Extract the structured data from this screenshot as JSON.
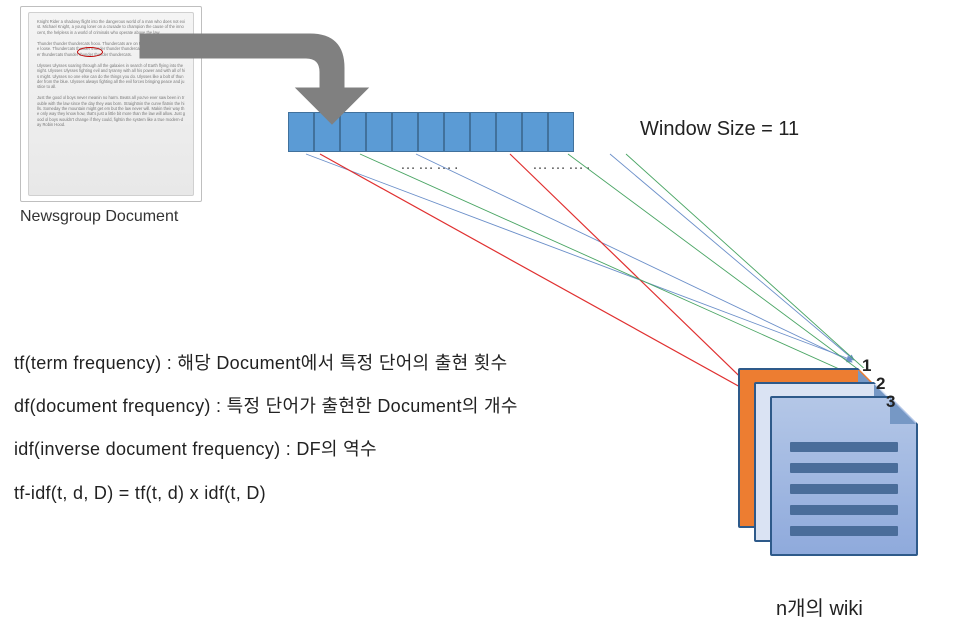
{
  "document": {
    "caption": "Newsgroup Document",
    "greeked_paragraphs": [
      "Knight Rider a shadowy flight into the dangerous world of a man who does not exist. Michael Knight, a young loner on a crusade to champion the cause of the innocent, the helpless in a world of criminals who operate above the law.",
      "Thunder thunder thundercats hooo. Thundercats are on the move, thundercats are loose. Thundercats thunder thunder thunder thundercats thunder thunder thunder thundercats thunder thunder thunder thundercats.",
      "Ulysses Ulysses soaring through all the galaxies in search of Earth flying into the night. Ulysses Ulysses fighting evil and tyranny with all his power and with all of his might. Ulysses no one else can do the things you do. Ulysses like a bolt of thunder from the blue. Ulysses always fighting all the evil forces bringing peace and justice to all.",
      "Just the good ol boys never meanin no harm. Beats all you've ever saw been in trouble with the law since the day they was born. Straightnin the curve flatnin the hills. Someday the mountain might get em but the law never will. Makin their way the only way they know how, that's just a little bit more than the law will allow. Just good ol boys wouldn't change if they could, fightin the system like a true modern-day Robin Hood."
    ]
  },
  "window": {
    "size": 11,
    "label": "Window Size = 11",
    "cell_color": "#5b9bd5",
    "cell_border": "#41719c",
    "dots_left": "……….",
    "dots_right": "………."
  },
  "arrow": {
    "color": "#808080"
  },
  "formulas": {
    "line1": "tf(term frequency) : 해당 Document에서 특정 단어의 출현 횟수",
    "line2": "df(document frequency) : 특정 단어가 출현한 Document의 개수",
    "line3": "idf(inverse document frequency) : DF의 역수",
    "line4": "tf-idf(t, d, D) = tf(t, d) x idf(t, D)"
  },
  "wiki": {
    "caption": "n개의 wiki",
    "numbers": [
      "1",
      "2",
      "3"
    ],
    "doc_colors": [
      "#ed7d31",
      "#dae3f3",
      "#8faadc"
    ],
    "border_color": "#2e5a8a"
  },
  "connector_lines": {
    "blue": {
      "color": "#6b8fc9",
      "width": 0.9
    },
    "red": {
      "color": "#e03030",
      "width": 1.2
    },
    "green": {
      "color": "#4aa564",
      "width": 0.9
    }
  }
}
